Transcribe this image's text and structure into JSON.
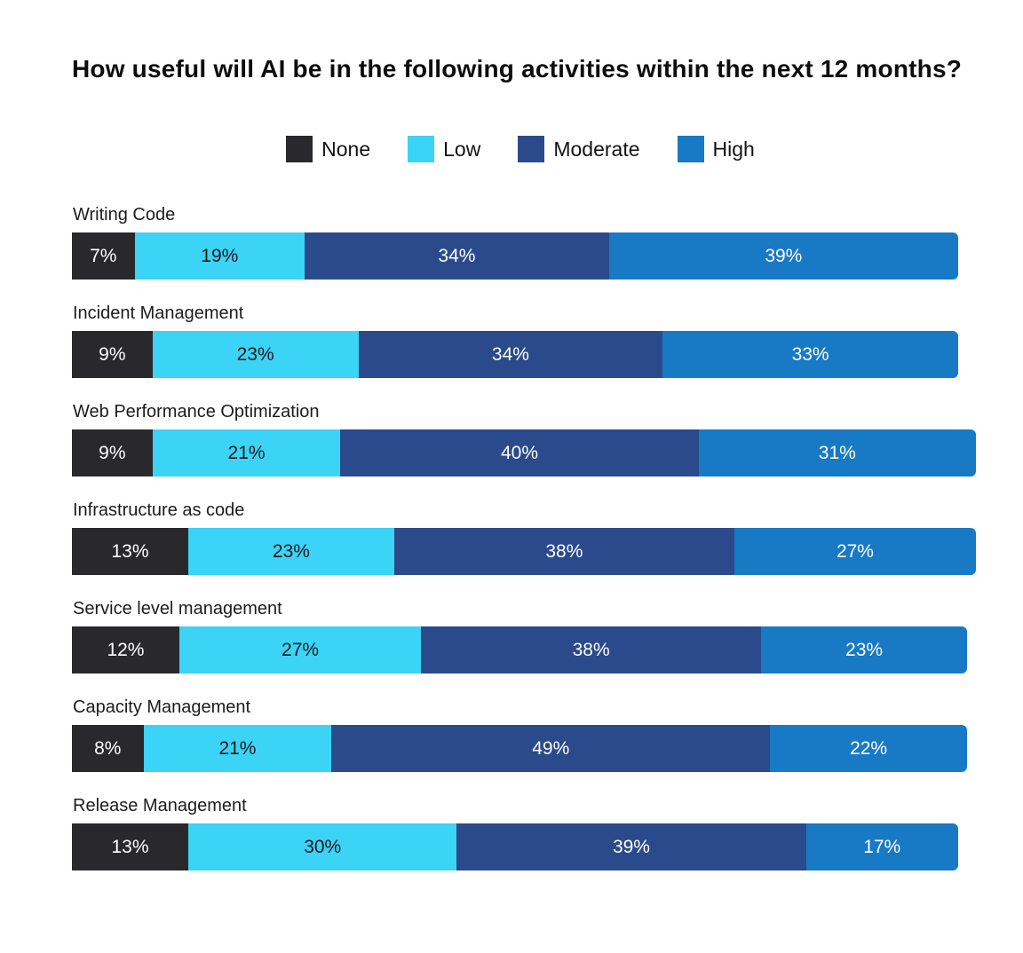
{
  "chart_data": {
    "type": "bar",
    "stacked": true,
    "orientation": "horizontal",
    "title": "How useful will AI be in the following activities within the next 12 months?",
    "xlabel": "",
    "ylabel": "",
    "xlim": [
      0,
      101
    ],
    "grid": false,
    "axes_hidden": true,
    "legend_position": "top-center",
    "value_suffix": "%",
    "categories": [
      "Writing Code",
      "Incident Management",
      "Web Performance Optimization",
      "Infrastructure as code",
      "Service level management",
      "Capacity Management",
      "Release Management"
    ],
    "series": [
      {
        "name": "None",
        "color": "#29292c",
        "label_color": "#ffffff",
        "values": [
          7,
          9,
          9,
          13,
          12,
          8,
          13
        ]
      },
      {
        "name": "Low",
        "color": "#3bd3f6",
        "label_color": "#17181c",
        "values": [
          19,
          23,
          21,
          23,
          27,
          21,
          30
        ]
      },
      {
        "name": "Moderate",
        "color": "#2a4a8c",
        "label_color": "#ffffff",
        "values": [
          34,
          34,
          40,
          38,
          38,
          49,
          39
        ]
      },
      {
        "name": "High",
        "color": "#1879c4",
        "label_color": "#ffffff",
        "values": [
          39,
          33,
          31,
          27,
          23,
          22,
          17
        ]
      }
    ]
  }
}
